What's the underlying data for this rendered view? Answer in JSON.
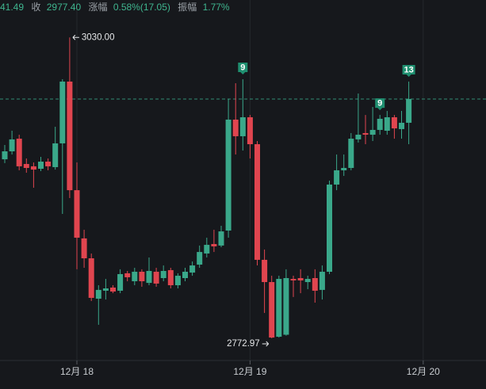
{
  "chart_data": {
    "type": "candlestick",
    "header": {
      "open_tail": "41.49",
      "close_label": "收",
      "close": "2977.40",
      "change_label": "涨幅",
      "change": "0.58%(17.05)",
      "amplitude_label": "振幅",
      "amplitude": "1.77%"
    },
    "categories": [
      null,
      null,
      null,
      null,
      null,
      null,
      null,
      null,
      null,
      null,
      "12月 18",
      null,
      null,
      null,
      null,
      null,
      null,
      null,
      null,
      null,
      null,
      null,
      null,
      null,
      null,
      null,
      null,
      null,
      null,
      null,
      null,
      null,
      null,
      null,
      "12月 19",
      null,
      null,
      null,
      null,
      null,
      null,
      null,
      null,
      null,
      null,
      null,
      null,
      null,
      null,
      null,
      null,
      null,
      null,
      null,
      null,
      null,
      null,
      null,
      "12月 20",
      null,
      null,
      null
    ],
    "open": [
      2925.9,
      2932.7,
      2943.5,
      2921.9,
      2919.9,
      2917.8,
      2923.9,
      2919.2,
      2939.5,
      2992.3,
      2899.5,
      2858.3,
      2841.3,
      2806.8,
      2813.6,
      2816.3,
      2813.6,
      2828.5,
      2821.7,
      2829.8,
      2820.3,
      2829.8,
      2824.4,
      2831.2,
      2818.3,
      2824.4,
      2829.1,
      2835.9,
      2845.4,
      2853.5,
      2852.2,
      2865.0,
      2959.8,
      2945.6,
      2961.8,
      2938.8,
      2840.0,
      2821.0,
      2774.3,
      2776.0,
      2823.7,
      2824.4,
      2821.0,
      2824.4,
      2814.3,
      2829.8,
      2904.3,
      2916.5,
      2918.5,
      2942.9,
      2948.3,
      2946.9,
      2951.0,
      2950.3,
      2961.8,
      2951.7,
      2957.1,
      null,
      null,
      null,
      null,
      null
    ],
    "high": [
      2938.1,
      2950.3,
      2946.9,
      2926.6,
      2923.2,
      2928.0,
      2926.6,
      2953.7,
      2994.3,
      3030,
      2923.2,
      2865.7,
      2845.4,
      2818.3,
      2823.7,
      2818.3,
      2831.9,
      2830.5,
      2833.2,
      2831.9,
      2842.0,
      2833.2,
      2835.2,
      2833.2,
      2828.5,
      2833.2,
      2838.6,
      2852.2,
      2858.9,
      2865.7,
      2869.1,
      2977.4,
      2990.9,
      2994.3,
      2963.8,
      2941.5,
      2848.8,
      2826.4,
      2826.4,
      2831.9,
      2826.4,
      2831.9,
      2826.4,
      2831.9,
      2835.2,
      2907.7,
      2930.0,
      2930.0,
      2948.3,
      2982.1,
      2963.8,
      2970.6,
      2963.8,
      2967.2,
      2963.8,
      2967.2,
      2992.3,
      null,
      null,
      null,
      null,
      null
    ],
    "low": [
      2922.6,
      2930.0,
      2916.5,
      2914.4,
      2901.6,
      2915.8,
      2916.5,
      2917.1,
      2879.2,
      2892.8,
      2831.9,
      2833.2,
      2804.8,
      2784.5,
      2806.1,
      2811.5,
      2811.5,
      2821.7,
      2818.3,
      2817.0,
      2818.3,
      2817.0,
      2821.7,
      2815.6,
      2815.6,
      2821.7,
      2826.4,
      2833.2,
      2842.0,
      2846.7,
      2850.8,
      2858.9,
      2930.0,
      2933.4,
      2926.6,
      2835.2,
      2794.6,
      2772.97,
      2773.6,
      2775.2,
      2808.2,
      2811.5,
      2814.9,
      2803.4,
      2806.1,
      2827.8,
      2899.5,
      2911.7,
      2916.5,
      2940.2,
      2938.8,
      2941.5,
      2946.9,
      2946.9,
      2943.5,
      2943.5,
      2938.8,
      null,
      null,
      null,
      null,
      null
    ],
    "close": [
      2932.7,
      2942.9,
      2919.9,
      2918.5,
      2917.1,
      2923.9,
      2919.9,
      2939.5,
      2992.3,
      2899.5,
      2858.9,
      2841.3,
      2807.5,
      2814.3,
      2815.6,
      2812.9,
      2827.8,
      2825.1,
      2829.8,
      2821.7,
      2830.5,
      2819.7,
      2830.5,
      2818.3,
      2826.4,
      2829.8,
      2835.2,
      2846.7,
      2852.8,
      2851.5,
      2864.3,
      2959.8,
      2945.6,
      2961.8,
      2938.8,
      2840.0,
      2821.0,
      2773.6,
      2823.7,
      2824.4,
      2822.4,
      2822.4,
      2823.7,
      2813.6,
      2829.8,
      2904.3,
      2916.5,
      2918.5,
      2943.5,
      2946.9,
      2946.9,
      2951.0,
      2960.5,
      2961.8,
      2952.3,
      2957.1,
      2977.4,
      null,
      null,
      null,
      null,
      null
    ],
    "markers": [
      null,
      null,
      null,
      null,
      null,
      null,
      null,
      null,
      null,
      null,
      null,
      null,
      null,
      null,
      null,
      null,
      null,
      null,
      null,
      null,
      null,
      null,
      null,
      null,
      null,
      null,
      null,
      null,
      null,
      null,
      null,
      null,
      null,
      9,
      null,
      null,
      null,
      null,
      null,
      null,
      null,
      null,
      null,
      null,
      null,
      null,
      null,
      null,
      null,
      null,
      null,
      null,
      9,
      null,
      null,
      null,
      13,
      null,
      null,
      null,
      null,
      null
    ],
    "max_label": "3030.00",
    "min_label": "2772.97",
    "last_price": 2977.4,
    "ylim": [
      2754,
      3062
    ],
    "up_color": "#3aa88a",
    "down_color": "#e0454f",
    "marker_color": "#1f8f70"
  }
}
